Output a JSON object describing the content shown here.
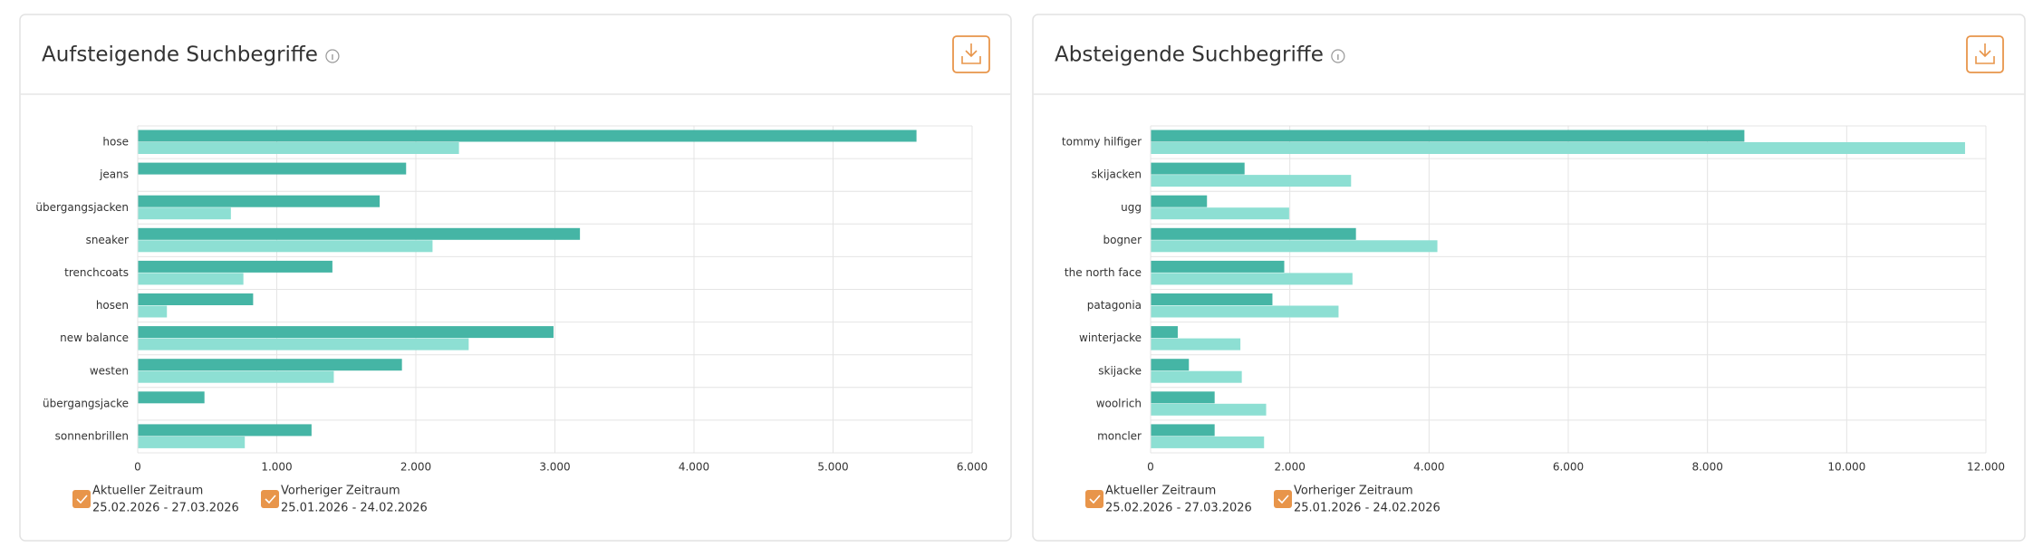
{
  "chart_data": [
    {
      "type": "bar",
      "orientation": "horizontal",
      "title": "Aufsteigende Suchbegriffe",
      "categories": [
        "hose",
        "jeans",
        "übergangsjacken",
        "sneaker",
        "trenchcoats",
        "hosen",
        "new balance",
        "westen",
        "übergangsjacke",
        "sonnenbrillen"
      ],
      "series": [
        {
          "name": "Aktueller Zeitraum",
          "period": "25.02.2026 - 27.03.2026",
          "color": "#45b5a5",
          "values": [
            5600,
            1930,
            1740,
            3180,
            1400,
            830,
            2990,
            1900,
            480,
            1250
          ]
        },
        {
          "name": "Vorheriger Zeitraum",
          "period": "25.01.2026 - 24.02.2026",
          "color": "#8ddfd3",
          "values": [
            2310,
            0,
            670,
            2120,
            760,
            210,
            2380,
            1410,
            0,
            770
          ]
        }
      ],
      "xlim": [
        0,
        6000
      ],
      "xticks": [
        0,
        {
          "value": 1000,
          "label": "1.000"
        },
        {
          "value": 2000,
          "label": "2.000"
        },
        {
          "value": 3000,
          "label": "3.000"
        },
        {
          "value": 4000,
          "label": "4.000"
        },
        {
          "value": 5000,
          "label": "5.000"
        },
        {
          "value": 6000,
          "label": "6.000"
        }
      ],
      "grid": true
    },
    {
      "type": "bar",
      "orientation": "horizontal",
      "title": "Absteigende Suchbegriffe",
      "categories": [
        "tommy hilfiger",
        "skijacken",
        "ugg",
        "bogner",
        "the north face",
        "patagonia",
        "winterjacke",
        "skijacke",
        "woolrich",
        "moncler"
      ],
      "series": [
        {
          "name": "Aktueller Zeitraum",
          "period": "25.02.2026 - 27.03.2026",
          "color": "#45b5a5",
          "values": [
            8530,
            1350,
            810,
            2950,
            1920,
            1750,
            390,
            550,
            920,
            920
          ]
        },
        {
          "name": "Vorheriger Zeitraum",
          "period": "25.01.2026 - 24.02.2026",
          "color": "#8ddfd3",
          "values": [
            11700,
            2880,
            1990,
            4120,
            2900,
            2700,
            1290,
            1310,
            1660,
            1630
          ]
        }
      ],
      "xlim": [
        0,
        12000
      ],
      "xticks": [
        0,
        {
          "value": 2000,
          "label": "2.000"
        },
        {
          "value": 4000,
          "label": "4.000"
        },
        {
          "value": 6000,
          "label": "6.000"
        },
        {
          "value": 8000,
          "label": "8.000"
        },
        {
          "value": 10000,
          "label": "10.000"
        },
        {
          "value": 12000,
          "label": "12.000"
        }
      ],
      "grid": true
    }
  ]
}
